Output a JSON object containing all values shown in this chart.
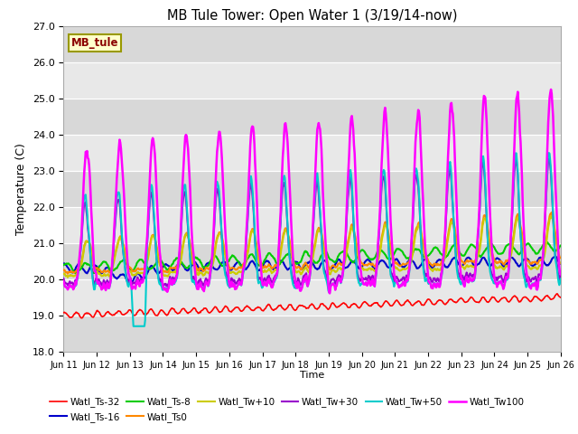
{
  "title": "MB Tule Tower: Open Water 1 (3/19/14-now)",
  "xlabel": "Time",
  "ylabel": "Temperature (C)",
  "ylim": [
    18.0,
    27.0
  ],
  "yticks": [
    18.0,
    19.0,
    20.0,
    21.0,
    22.0,
    23.0,
    24.0,
    25.0,
    26.0,
    27.0
  ],
  "plot_bg": "#e8e8e8",
  "series_order": [
    "Watl_Ts-32",
    "Watl_Ts-16",
    "Watl_Ts-8",
    "Watl_Ts0",
    "Watl_Tw+10",
    "Watl_Tw+30",
    "Watl_Tw+50",
    "Watl_Tw100"
  ],
  "series_colors": [
    "#ff0000",
    "#0000cc",
    "#00cc00",
    "#ff8800",
    "#cccc00",
    "#9900cc",
    "#00cccc",
    "#ff00ff"
  ],
  "series_lw": [
    1.2,
    1.5,
    1.5,
    1.5,
    1.5,
    1.5,
    1.5,
    1.8
  ],
  "xtick_labels": [
    "Jun 11",
    "Jun 12",
    "Jun 13",
    "Jun 14",
    "Jun 15",
    "Jun 16",
    "Jun 17",
    "Jun 18",
    "Jun 19",
    "Jun 20",
    "Jun 21",
    "Jun 22",
    "Jun 23",
    "Jun 24",
    "Jun 25",
    "Jun 26"
  ],
  "station_label": "MB_tule",
  "n_points": 720,
  "n_days": 15
}
